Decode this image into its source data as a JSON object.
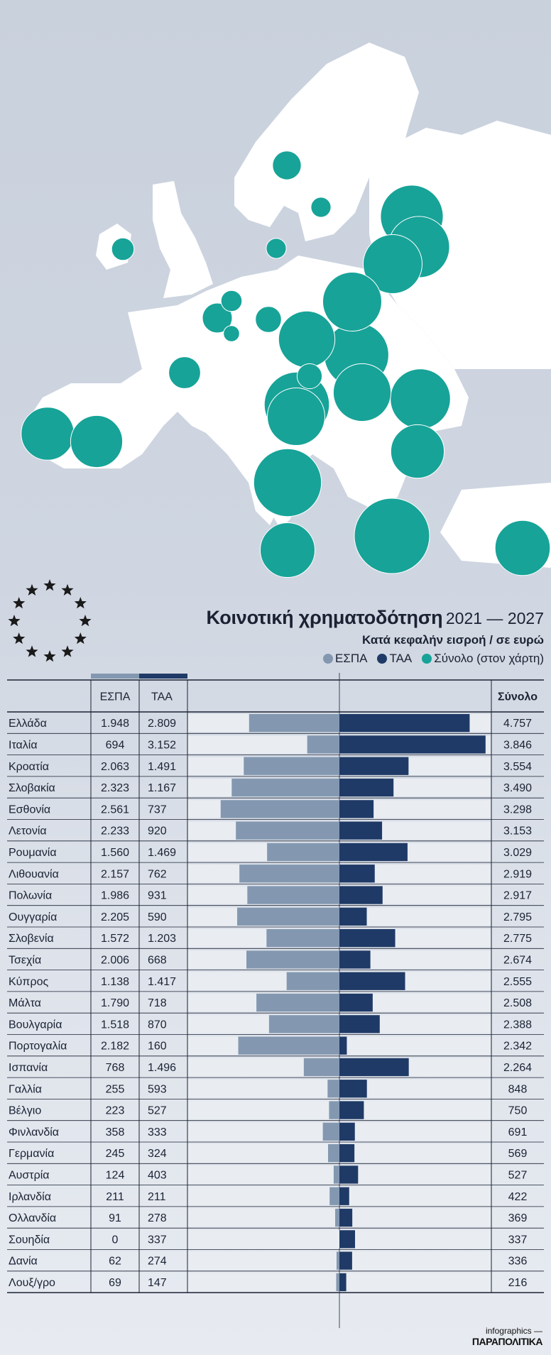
{
  "title": "Κοινοτική χρηματοδότηση",
  "title_years": "2021 — 2027",
  "subtitle": "Κατά κεφαλήν εισροή / σε ευρώ",
  "legend": [
    {
      "label": "ΕΣΠΑ",
      "color": "#8398b0"
    },
    {
      "label": "ΤΑΑ",
      "color": "#1f3a66"
    },
    {
      "label": "Σύνολο (στον χάρτη)",
      "color": "#17a398"
    }
  ],
  "colors": {
    "espa": "#8398b0",
    "taa": "#1f3a66",
    "total": "#17a398",
    "land": "#ffffff",
    "sea": "#c9d1dd"
  },
  "credit": {
    "line1": "infographics —",
    "line2": "ΠΑΡΑΠΟΛΙΤΙΚΑ"
  },
  "chart_data": {
    "type": "table",
    "columns": [
      "",
      "ΕΣΠΑ",
      "ΤΑΑ",
      "",
      "Σύνολο"
    ],
    "rows": [
      {
        "country": "Ελλάδα",
        "espa": 1948,
        "taa": 2809,
        "total": 4757,
        "espa_label": "1.948",
        "taa_label": "2.809",
        "total_label": "4.757"
      },
      {
        "country": "Ιταλία",
        "espa": 694,
        "taa": 3152,
        "total": 3846,
        "espa_label": "694",
        "taa_label": "3.152",
        "total_label": "3.846"
      },
      {
        "country": "Κροατία",
        "espa": 2063,
        "taa": 1491,
        "total": 3554,
        "espa_label": "2.063",
        "taa_label": "1.491",
        "total_label": "3.554"
      },
      {
        "country": "Σλοβακία",
        "espa": 2323,
        "taa": 1167,
        "total": 3490,
        "espa_label": "2.323",
        "taa_label": "1.167",
        "total_label": "3.490"
      },
      {
        "country": "Εσθονία",
        "espa": 2561,
        "taa": 737,
        "total": 3298,
        "espa_label": "2.561",
        "taa_label": "737",
        "total_label": "3.298"
      },
      {
        "country": "Λετονία",
        "espa": 2233,
        "taa": 920,
        "total": 3153,
        "espa_label": "2.233",
        "taa_label": "920",
        "total_label": "3.153"
      },
      {
        "country": "Ρουμανία",
        "espa": 1560,
        "taa": 1469,
        "total": 3029,
        "espa_label": "1.560",
        "taa_label": "1.469",
        "total_label": "3.029"
      },
      {
        "country": "Λιθουανία",
        "espa": 2157,
        "taa": 762,
        "total": 2919,
        "espa_label": "2.157",
        "taa_label": "762",
        "total_label": "2.919"
      },
      {
        "country": "Πολωνία",
        "espa": 1986,
        "taa": 931,
        "total": 2917,
        "espa_label": "1.986",
        "taa_label": "931",
        "total_label": "2.917"
      },
      {
        "country": "Ουγγαρία",
        "espa": 2205,
        "taa": 590,
        "total": 2795,
        "espa_label": "2.205",
        "taa_label": "590",
        "total_label": "2.795"
      },
      {
        "country": "Σλοβενία",
        "espa": 1572,
        "taa": 1203,
        "total": 2775,
        "espa_label": "1.572",
        "taa_label": "1.203",
        "total_label": "2.775"
      },
      {
        "country": "Τσεχία",
        "espa": 2006,
        "taa": 668,
        "total": 2674,
        "espa_label": "2.006",
        "taa_label": "668",
        "total_label": "2.674"
      },
      {
        "country": "Κύπρος",
        "espa": 1138,
        "taa": 1417,
        "total": 2555,
        "espa_label": "1.138",
        "taa_label": "1.417",
        "total_label": "2.555"
      },
      {
        "country": "Μάλτα",
        "espa": 1790,
        "taa": 718,
        "total": 2508,
        "espa_label": "1.790",
        "taa_label": "718",
        "total_label": "2.508"
      },
      {
        "country": "Βουλγαρία",
        "espa": 1518,
        "taa": 870,
        "total": 2388,
        "espa_label": "1.518",
        "taa_label": "870",
        "total_label": "2.388"
      },
      {
        "country": "Πορτογαλία",
        "espa": 2182,
        "taa": 160,
        "total": 2342,
        "espa_label": "2.182",
        "taa_label": "160",
        "total_label": "2.342"
      },
      {
        "country": "Ισπανία",
        "espa": 768,
        "taa": 1496,
        "total": 2264,
        "espa_label": "768",
        "taa_label": "1.496",
        "total_label": "2.264"
      },
      {
        "country": "Γαλλία",
        "espa": 255,
        "taa": 593,
        "total": 848,
        "espa_label": "255",
        "taa_label": "593",
        "total_label": "848"
      },
      {
        "country": "Βέλγιο",
        "espa": 223,
        "taa": 527,
        "total": 750,
        "espa_label": "223",
        "taa_label": "527",
        "total_label": "750"
      },
      {
        "country": "Φινλανδία",
        "espa": 358,
        "taa": 333,
        "total": 691,
        "espa_label": "358",
        "taa_label": "333",
        "total_label": "691"
      },
      {
        "country": "Γερμανία",
        "espa": 245,
        "taa": 324,
        "total": 569,
        "espa_label": "245",
        "taa_label": "324",
        "total_label": "569"
      },
      {
        "country": "Αυστρία",
        "espa": 124,
        "taa": 403,
        "total": 527,
        "espa_label": "124",
        "taa_label": "403",
        "total_label": "527"
      },
      {
        "country": "Ιρλανδία",
        "espa": 211,
        "taa": 211,
        "total": 422,
        "espa_label": "211",
        "taa_label": "211",
        "total_label": "422"
      },
      {
        "country": "Ολλανδία",
        "espa": 91,
        "taa": 278,
        "total": 369,
        "espa_label": "91",
        "taa_label": "278",
        "total_label": "369"
      },
      {
        "country": "Σουηδία",
        "espa": 0,
        "taa": 337,
        "total": 337,
        "espa_label": "0",
        "taa_label": "337",
        "total_label": "337"
      },
      {
        "country": "Δανία",
        "espa": 62,
        "taa": 274,
        "total": 336,
        "espa_label": "62",
        "taa_label": "274",
        "total_label": "336"
      },
      {
        "country": "Λουξ/γρο",
        "espa": 69,
        "taa": 147,
        "total": 216,
        "espa_label": "69",
        "taa_label": "147",
        "total_label": "216"
      }
    ]
  }
}
